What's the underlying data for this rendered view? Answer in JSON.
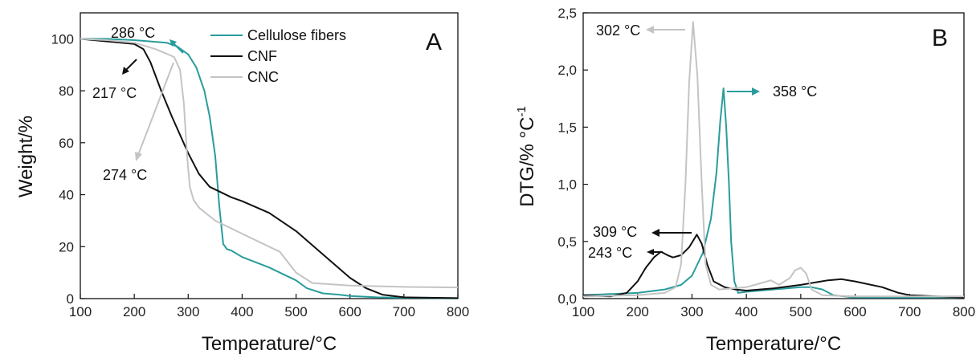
{
  "colors": {
    "cellulose": "#2a9c9c",
    "cnf": "#111111",
    "cnc": "#c4c4c4"
  },
  "chart_data": [
    {
      "type": "line",
      "panel": "A",
      "xlabel": "Temperature/°C",
      "ylabel": "Weight/%",
      "xlim": [
        100,
        800
      ],
      "ylim": [
        0,
        110
      ],
      "xticks": [
        "100",
        "200",
        "300",
        "400",
        "500",
        "600",
        "700",
        "800"
      ],
      "yticks": [
        "0",
        "20",
        "40",
        "60",
        "80",
        "100"
      ],
      "legend": {
        "placement": "top-center"
      },
      "series": [
        {
          "name": "Cellulose fibers",
          "color_key": "cellulose",
          "x": [
            100,
            150,
            200,
            230,
            260,
            280,
            300,
            315,
            330,
            340,
            350,
            358,
            365,
            372,
            380,
            400,
            450,
            500,
            520,
            550,
            580,
            600,
            650,
            700,
            800
          ],
          "y": [
            100,
            100,
            99.5,
            99,
            98.5,
            97,
            94,
            89,
            80,
            70,
            55,
            35,
            21,
            19,
            18.5,
            16,
            12,
            7,
            4,
            2,
            1.5,
            1,
            0.5,
            0.3,
            0.1
          ]
        },
        {
          "name": "CNF",
          "color_key": "cnf",
          "x": [
            100,
            150,
            200,
            217,
            230,
            250,
            270,
            300,
            320,
            340,
            360,
            380,
            400,
            450,
            500,
            550,
            600,
            630,
            660,
            700,
            800
          ],
          "y": [
            100,
            99,
            98,
            96,
            91,
            80,
            70,
            56,
            48,
            43,
            41,
            39,
            37.5,
            33,
            26,
            17,
            8,
            4,
            1.5,
            0.5,
            0.2
          ]
        },
        {
          "name": "CNC",
          "color_key": "cnc",
          "x": [
            100,
            150,
            200,
            240,
            274,
            285,
            292,
            298,
            303,
            310,
            320,
            350,
            400,
            450,
            470,
            500,
            530,
            600,
            700,
            800
          ],
          "y": [
            100,
            99.5,
            98.5,
            96,
            93,
            88,
            75,
            55,
            43,
            38,
            35,
            30,
            25,
            20,
            18,
            10,
            6,
            5,
            4.5,
            4.3
          ]
        }
      ],
      "annotations": [
        "286 °C",
        "217 °C",
        "274 °C"
      ]
    },
    {
      "type": "line",
      "panel": "B",
      "xlabel": "Temperature/°C",
      "ylabel": "DTG/% °C",
      "ylabel_sup": "-1",
      "xlim": [
        100,
        800
      ],
      "ylim": [
        0,
        2.5
      ],
      "xticks": [
        "100",
        "200",
        "300",
        "400",
        "500",
        "600",
        "700",
        "800"
      ],
      "yticks": [
        "0,0",
        "0,5",
        "1,0",
        "1,5",
        "2,0",
        "2,5"
      ],
      "series": [
        {
          "name": "",
          "color_key": "cellulose",
          "x": [
            100,
            200,
            250,
            280,
            300,
            320,
            335,
            345,
            352,
            358,
            363,
            368,
            372,
            378,
            385,
            400,
            450,
            500,
            520,
            540,
            560,
            600,
            700,
            800
          ],
          "y": [
            0.03,
            0.05,
            0.08,
            0.12,
            0.2,
            0.4,
            0.7,
            1.1,
            1.55,
            1.84,
            1.5,
            1.0,
            0.5,
            0.15,
            0.05,
            0.06,
            0.08,
            0.1,
            0.1,
            0.08,
            0.03,
            0.01,
            0.01,
            0.01
          ]
        },
        {
          "name": "",
          "color_key": "cnf",
          "x": [
            100,
            150,
            180,
            200,
            215,
            230,
            243,
            255,
            265,
            280,
            295,
            309,
            318,
            328,
            340,
            360,
            380,
            400,
            450,
            500,
            550,
            575,
            600,
            650,
            680,
            700,
            750,
            800
          ],
          "y": [
            0.03,
            0.02,
            0.05,
            0.15,
            0.27,
            0.36,
            0.41,
            0.38,
            0.36,
            0.38,
            0.45,
            0.56,
            0.48,
            0.3,
            0.15,
            0.1,
            0.08,
            0.07,
            0.09,
            0.12,
            0.16,
            0.17,
            0.15,
            0.1,
            0.05,
            0.03,
            0.02,
            0.01
          ]
        },
        {
          "name": "",
          "color_key": "cnc",
          "x": [
            100,
            200,
            250,
            270,
            280,
            288,
            295,
            302,
            310,
            318,
            325,
            335,
            350,
            400,
            430,
            445,
            460,
            480,
            490,
            500,
            510,
            520,
            540,
            600,
            700,
            800
          ],
          "y": [
            0.02,
            0.03,
            0.05,
            0.1,
            0.3,
            1.0,
            1.9,
            2.42,
            1.95,
            1.0,
            0.3,
            0.12,
            0.08,
            0.1,
            0.14,
            0.16,
            0.12,
            0.18,
            0.25,
            0.27,
            0.22,
            0.08,
            0.03,
            0.02,
            0.02,
            0.02
          ]
        }
      ],
      "annotations": [
        "302 °C",
        "358 °C",
        "309 °C",
        "243 °C"
      ]
    }
  ],
  "panels": {
    "a_letter": "A",
    "b_letter": "B"
  },
  "legend": {
    "cellulose": "Cellulose fibers",
    "cnf": "CNF",
    "cnc": "CNC"
  },
  "annotations": {
    "a_286": "286 °C",
    "a_217": "217 °C",
    "a_274": "274 °C",
    "b_302": "302 °C",
    "b_358": "358 °C",
    "b_309": "309 °C",
    "b_243": "243 °C"
  }
}
